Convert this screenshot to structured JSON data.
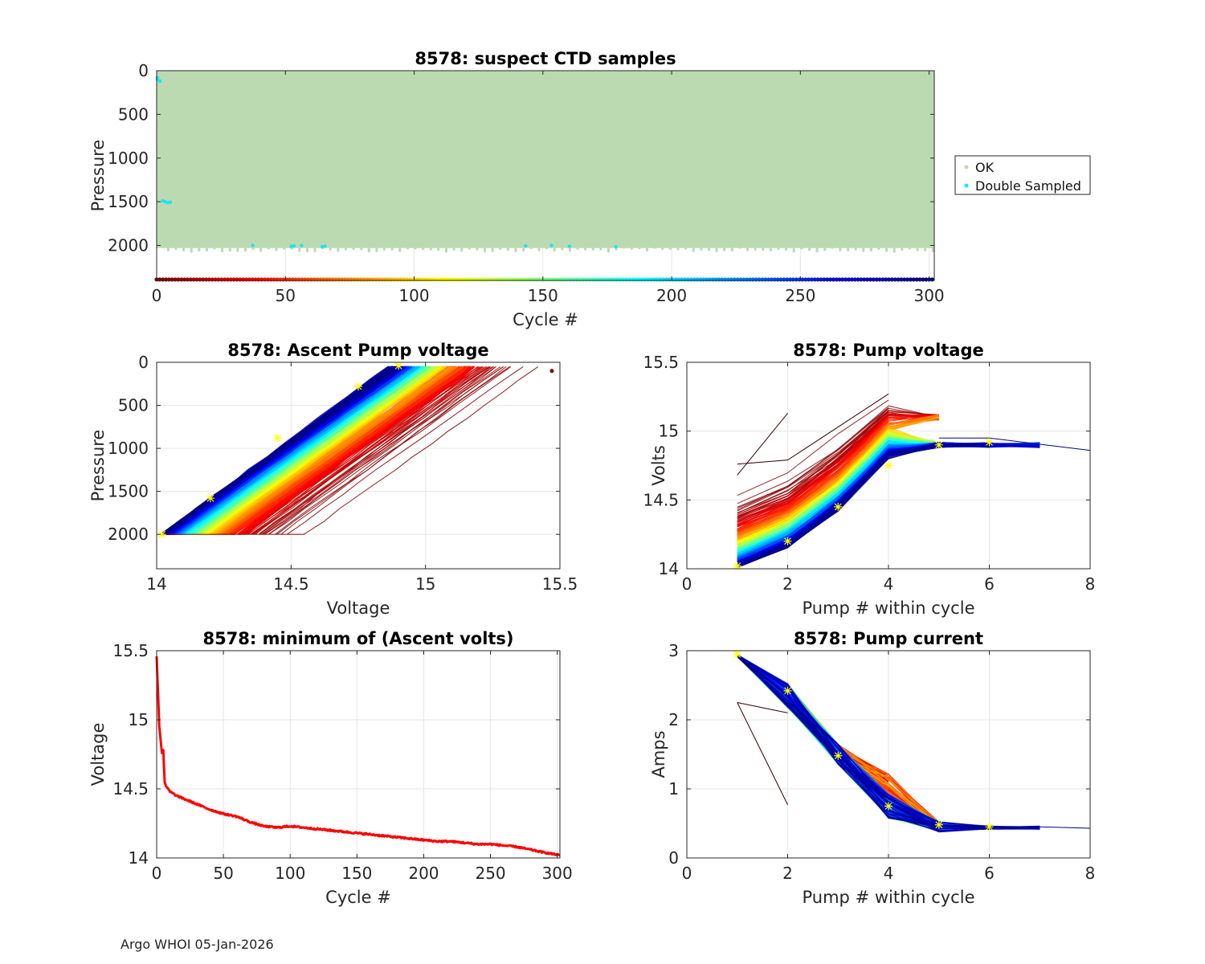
{
  "footer": "Argo WHOI 05-Jan-2026",
  "colors": {
    "ok": "#bcdab1",
    "double_sampled": "#19e6f2",
    "min_line": "#ff0000",
    "marker": "#ffff00",
    "grid": "#e6e6e6",
    "axis": "#262626"
  },
  "chart_data": [
    {
      "id": "ctd",
      "type": "scatter",
      "title": "8578: suspect CTD samples",
      "xlabel": "Cycle #",
      "ylabel": "Pressure",
      "xlim": [
        0,
        302
      ],
      "ylim": [
        0,
        2400
      ],
      "y_reversed": true,
      "xticks": [
        0,
        50,
        100,
        150,
        200,
        250,
        300
      ],
      "yticks": [
        0,
        500,
        1000,
        1500,
        2000
      ],
      "legend": {
        "placement": "right-outside",
        "entries": [
          "OK",
          "Double Sampled"
        ]
      },
      "ok_region": {
        "cycles": [
          0,
          302
        ],
        "pressure": [
          0,
          2030
        ]
      },
      "double_sampled_points": [
        [
          0,
          80
        ],
        [
          0,
          100
        ],
        [
          1,
          120
        ],
        [
          2,
          1490
        ],
        [
          3,
          1500
        ],
        [
          4,
          1510
        ],
        [
          5,
          1505
        ],
        [
          37,
          2000
        ],
        [
          52,
          2010
        ],
        [
          53,
          2005
        ],
        [
          56,
          2000
        ],
        [
          64,
          2015
        ],
        [
          65,
          2010
        ],
        [
          143,
          2005
        ],
        [
          153,
          2000
        ],
        [
          160,
          2010
        ],
        [
          178,
          2015
        ]
      ],
      "cycle_colorbar_y": 2390
    },
    {
      "id": "ascent",
      "type": "line",
      "title": "8578: Ascent Pump voltage",
      "xlabel": "Voltage",
      "ylabel": "Pressure",
      "xlim": [
        14,
        15.5
      ],
      "ylim": [
        0,
        2400
      ],
      "y_reversed": true,
      "xticks": [
        14,
        14.5,
        15,
        15.5
      ],
      "yticks": [
        0,
        500,
        1000,
        1500,
        2000
      ],
      "series_template": "one line per cycle: voltage at 2000 dbar falls from ~14.55 (early cycles) to ~14.02 (late cycles), rising ~0.9 V toward the surface",
      "voltage_at_2000_first": 14.55,
      "voltage_at_2000_last": 14.02,
      "voltage_gain_to_surface": 0.88,
      "markers": [
        [
          14.02,
          2000
        ],
        [
          14.2,
          1580
        ],
        [
          14.45,
          880
        ],
        [
          14.75,
          280
        ],
        [
          14.9,
          40
        ]
      ],
      "outlier_point": [
        15.47,
        100
      ]
    },
    {
      "id": "pumpv",
      "type": "line",
      "title": "8578: Pump voltage",
      "xlabel": "Pump # within cycle",
      "ylabel": "Volts",
      "xlim": [
        0,
        8
      ],
      "ylim": [
        14,
        15.5
      ],
      "xticks": [
        0,
        2,
        4,
        6,
        8
      ],
      "yticks": [
        14,
        14.5,
        15,
        15.5
      ],
      "series_template": "one line per cycle over pumps 1..5 (some up to 7): starts 14.02–14.52 at pump 1, rises to ~14.9–15.2 by pump 4–5",
      "markers": [
        [
          1,
          14.02
        ],
        [
          2,
          14.2
        ],
        [
          3,
          14.45
        ],
        [
          4,
          14.75
        ],
        [
          5,
          14.9
        ],
        [
          6,
          14.92
        ]
      ]
    },
    {
      "id": "minv",
      "type": "line",
      "title": "8578: minimum of (Ascent volts)",
      "xlabel": "Cycle #",
      "ylabel": "Voltage",
      "xlim": [
        0,
        302
      ],
      "ylim": [
        14,
        15.5
      ],
      "xticks": [
        0,
        50,
        100,
        150,
        200,
        250,
        300
      ],
      "yticks": [
        14,
        14.5,
        15,
        15.5
      ],
      "series": [
        {
          "name": "minimum ascent volts",
          "x": [
            0,
            1,
            2,
            3,
            4,
            5,
            6,
            7,
            10,
            15,
            20,
            25,
            30,
            40,
            50,
            60,
            70,
            80,
            90,
            100,
            110,
            120,
            130,
            140,
            150,
            160,
            170,
            180,
            190,
            200,
            210,
            220,
            230,
            240,
            250,
            260,
            270,
            280,
            290,
            302
          ],
          "values": [
            15.46,
            15.2,
            14.95,
            14.85,
            14.76,
            14.78,
            14.55,
            14.52,
            14.48,
            14.45,
            14.43,
            14.41,
            14.39,
            14.35,
            14.32,
            14.3,
            14.26,
            14.23,
            14.22,
            14.23,
            14.22,
            14.21,
            14.2,
            14.19,
            14.18,
            14.17,
            14.16,
            14.15,
            14.14,
            14.13,
            14.12,
            14.12,
            14.11,
            14.1,
            14.1,
            14.09,
            14.08,
            14.06,
            14.04,
            14.02
          ]
        }
      ]
    },
    {
      "id": "pumpc",
      "type": "line",
      "title": "8578: Pump current",
      "xlabel": "Pump # within cycle",
      "ylabel": "Amps",
      "xlim": [
        0,
        8
      ],
      "ylim": [
        0,
        3
      ],
      "xticks": [
        0,
        2,
        4,
        6,
        8
      ],
      "yticks": [
        0,
        1,
        2,
        3
      ],
      "series_template": "one line per cycle: ~2.9 A at pump 1 falling to ~0.4–0.7 A by pump 4–5, then flat ~0.45 A",
      "markers": [
        [
          1,
          2.95
        ],
        [
          2,
          2.42
        ],
        [
          3,
          1.48
        ],
        [
          4,
          0.75
        ],
        [
          5,
          0.48
        ],
        [
          6,
          0.45
        ]
      ]
    }
  ]
}
